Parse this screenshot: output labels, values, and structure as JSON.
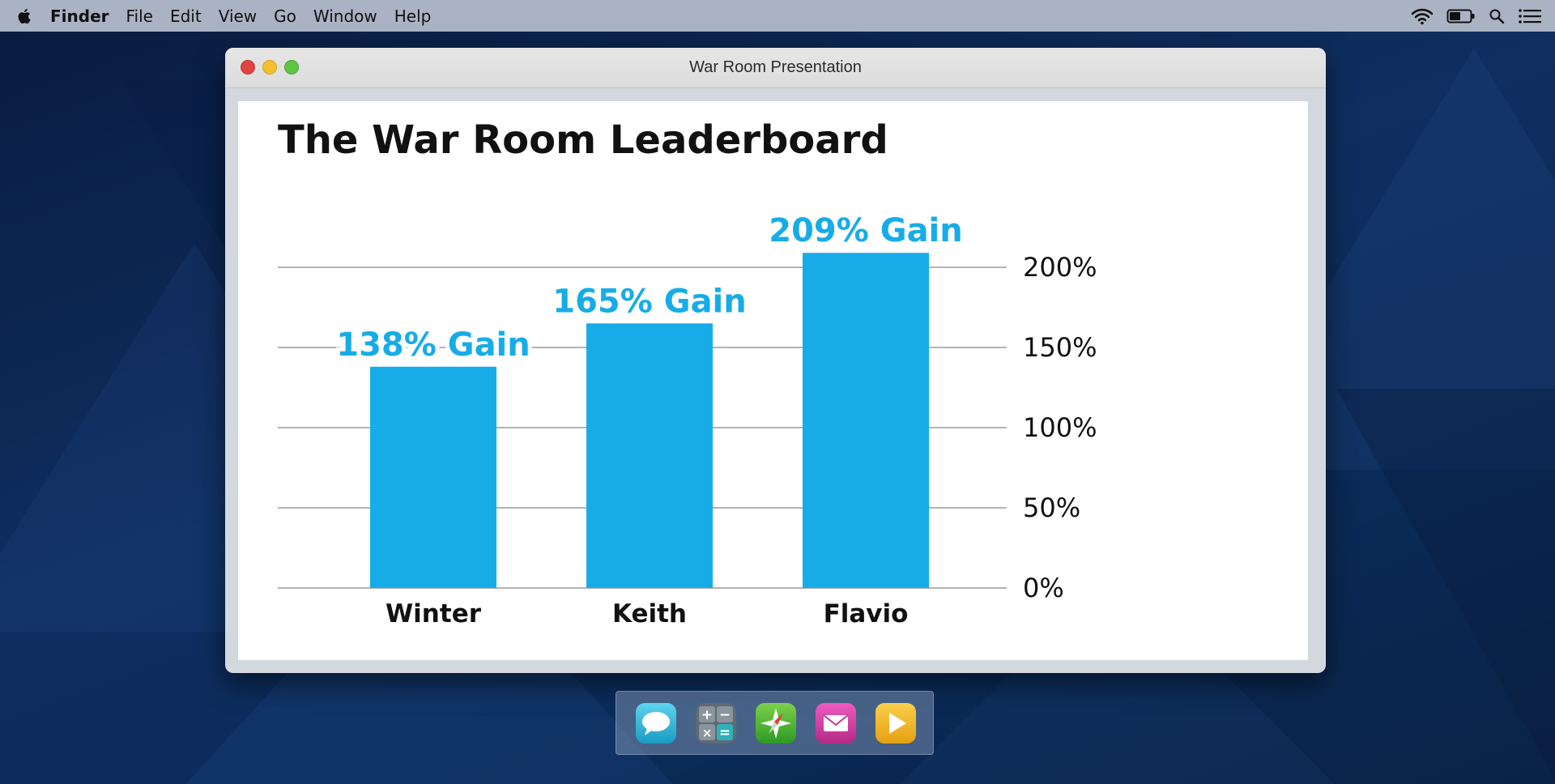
{
  "menubar": {
    "app_name": "Finder",
    "items": [
      "File",
      "Edit",
      "View",
      "Go",
      "Window",
      "Help"
    ],
    "status_icons": [
      "wifi-icon",
      "battery-icon",
      "spotlight-search-icon",
      "notification-center-icon"
    ]
  },
  "window": {
    "title": "War Room Presentation"
  },
  "chart_data": {
    "type": "bar",
    "title": "The War Room Leaderboard",
    "categories": [
      "Winter",
      "Keith",
      "Flavio"
    ],
    "values": [
      138,
      165,
      209
    ],
    "data_labels": [
      "138% Gain",
      "165% Gain",
      "209% Gain"
    ],
    "y_ticks": [
      "0%",
      "50%",
      "100%",
      "150%",
      "200%"
    ],
    "y_tick_values": [
      0,
      50,
      100,
      150,
      200
    ],
    "ylim": [
      0,
      200
    ],
    "y_axis_side": "right",
    "grid": true,
    "bar_color": "#17ace8",
    "label_color": "#17ace8"
  },
  "dock": {
    "items": [
      {
        "name": "messages-icon",
        "color": "#2db4d6"
      },
      {
        "name": "calculator-icon",
        "color": "#7a8590"
      },
      {
        "name": "safari-compass-icon",
        "color": "#4db23a"
      },
      {
        "name": "mail-icon",
        "color": "#d4379e"
      },
      {
        "name": "media-player-icon",
        "color": "#f0b21e"
      }
    ]
  },
  "colors": {
    "menubar": "#a9b3c3",
    "desktop": "#0e2f60",
    "accent": "#17ace8"
  }
}
